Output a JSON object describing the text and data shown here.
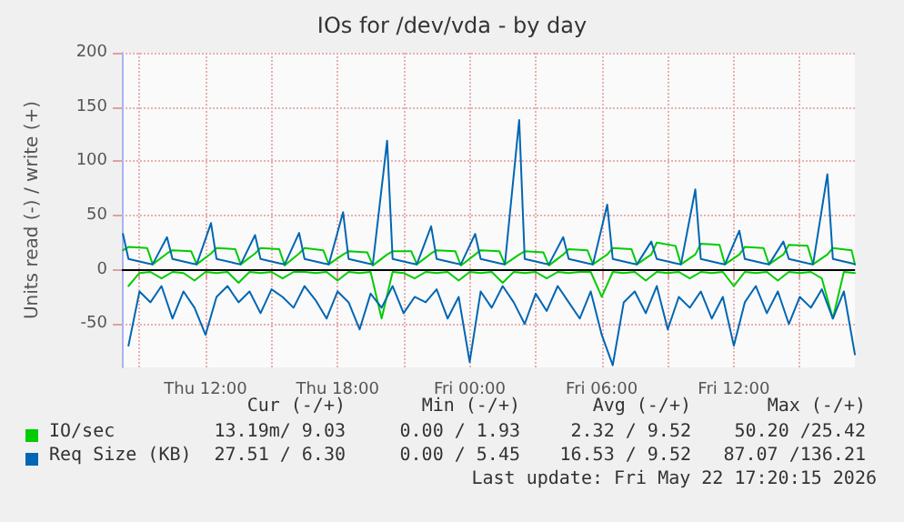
{
  "chart_data": {
    "type": "line",
    "title": "IOs for /dev/vda - by day",
    "ylabel": "Units read (-) / write (+)",
    "xlim": [
      "2026-05-21T08:12",
      "2026-05-22T17:30"
    ],
    "xticks": [
      {
        "value": "2026-05-21T09:00",
        "label": null
      },
      {
        "value": "2026-05-21T12:00",
        "label": "Thu 12:00"
      },
      {
        "value": "2026-05-21T15:00",
        "label": null
      },
      {
        "value": "2026-05-21T18:00",
        "label": "Thu 18:00"
      },
      {
        "value": "2026-05-21T21:00",
        "label": null
      },
      {
        "value": "2026-05-22T00:00",
        "label": "Fri 00:00"
      },
      {
        "value": "2026-05-22T03:00",
        "label": null
      },
      {
        "value": "2026-05-22T06:00",
        "label": "Fri 06:00"
      },
      {
        "value": "2026-05-22T09:00",
        "label": null
      },
      {
        "value": "2026-05-22T12:00",
        "label": "Fri 12:00"
      },
      {
        "value": "2026-05-22T15:00",
        "label": null
      }
    ],
    "ylim": [
      -90,
      200
    ],
    "yticks": [
      -50,
      0,
      50,
      100,
      150,
      200
    ],
    "grid": true,
    "legend": "bottom",
    "marker": "none",
    "ref_lines": [
      {
        "axis": "y",
        "value": 0,
        "color": "#000000"
      }
    ],
    "series": [
      {
        "name": "IO/sec",
        "color": "#00cc00",
        "x": [
          "2026-05-21T08:15",
          "2026-05-21T08:30",
          "2026-05-21T09:21",
          "2026-05-21T09:36",
          "2026-05-21T10:15",
          "2026-05-21T10:30",
          "2026-05-21T11:21",
          "2026-05-21T11:36",
          "2026-05-21T12:15",
          "2026-05-21T12:30",
          "2026-05-21T13:21",
          "2026-05-21T13:36",
          "2026-05-21T14:15",
          "2026-05-21T14:30",
          "2026-05-21T15:21",
          "2026-05-21T15:36",
          "2026-05-21T16:15",
          "2026-05-21T16:30",
          "2026-05-21T17:21",
          "2026-05-21T17:36",
          "2026-05-21T18:15",
          "2026-05-21T18:30",
          "2026-05-21T19:21",
          "2026-05-21T19:36",
          "2026-05-21T20:15",
          "2026-05-21T20:30",
          "2026-05-21T21:21",
          "2026-05-21T21:36",
          "2026-05-21T22:15",
          "2026-05-21T22:30",
          "2026-05-21T23:21",
          "2026-05-21T23:36",
          "2026-05-22T00:15",
          "2026-05-22T00:30",
          "2026-05-22T01:21",
          "2026-05-22T01:36",
          "2026-05-22T02:15",
          "2026-05-22T02:30",
          "2026-05-22T03:21",
          "2026-05-22T03:36",
          "2026-05-22T04:15",
          "2026-05-22T04:30",
          "2026-05-22T05:21",
          "2026-05-22T05:36",
          "2026-05-22T06:15",
          "2026-05-22T06:30",
          "2026-05-22T07:21",
          "2026-05-22T07:36",
          "2026-05-22T08:15",
          "2026-05-22T08:30",
          "2026-05-22T09:21",
          "2026-05-22T09:36",
          "2026-05-22T10:15",
          "2026-05-22T10:30",
          "2026-05-22T11:21",
          "2026-05-22T11:36",
          "2026-05-22T12:15",
          "2026-05-22T12:30",
          "2026-05-22T13:21",
          "2026-05-22T13:36",
          "2026-05-22T14:15",
          "2026-05-22T14:30",
          "2026-05-22T15:21",
          "2026-05-22T15:36",
          "2026-05-22T16:15",
          "2026-05-22T16:30",
          "2026-05-22T17:21",
          "2026-05-22T17:30"
        ],
        "values": [
          18,
          21,
          20,
          5,
          15,
          18,
          17,
          5,
          15,
          20,
          19,
          5,
          15,
          20,
          19,
          4,
          15,
          20,
          18,
          5,
          14,
          17,
          16,
          4,
          14,
          17,
          17,
          5,
          15,
          18,
          17,
          4,
          14,
          18,
          17,
          5,
          14,
          17,
          16,
          4,
          14,
          19,
          18,
          5,
          14,
          20,
          19,
          5,
          14,
          25,
          22,
          5,
          14,
          24,
          23,
          5,
          14,
          21,
          20,
          5,
          14,
          23,
          22,
          5,
          14,
          20,
          18,
          5
        ]
      },
      {
        "name": "Req Size (KB)",
        "color": "#0066b3",
        "x": [
          "2026-05-21T08:15",
          "2026-05-21T08:30",
          "2026-05-21T09:21",
          "2026-05-21T09:36",
          "2026-05-21T10:15",
          "2026-05-21T10:30",
          "2026-05-21T11:21",
          "2026-05-21T11:36",
          "2026-05-21T12:15",
          "2026-05-21T12:30",
          "2026-05-21T13:21",
          "2026-05-21T13:36",
          "2026-05-21T14:15",
          "2026-05-21T14:30",
          "2026-05-21T15:21",
          "2026-05-21T15:36",
          "2026-05-21T16:15",
          "2026-05-21T16:30",
          "2026-05-21T17:21",
          "2026-05-21T17:36",
          "2026-05-21T18:15",
          "2026-05-21T18:30",
          "2026-05-21T19:21",
          "2026-05-21T19:36",
          "2026-05-21T20:15",
          "2026-05-21T20:30",
          "2026-05-21T21:21",
          "2026-05-21T21:36",
          "2026-05-21T22:15",
          "2026-05-21T22:30",
          "2026-05-21T23:21",
          "2026-05-21T23:36",
          "2026-05-22T00:15",
          "2026-05-22T00:30",
          "2026-05-22T01:21",
          "2026-05-22T01:36",
          "2026-05-22T02:15",
          "2026-05-22T02:30",
          "2026-05-22T03:21",
          "2026-05-22T03:36",
          "2026-05-22T04:15",
          "2026-05-22T04:30",
          "2026-05-22T05:21",
          "2026-05-22T05:36",
          "2026-05-22T06:15",
          "2026-05-22T06:30",
          "2026-05-22T07:21",
          "2026-05-22T07:36",
          "2026-05-22T08:15",
          "2026-05-22T08:30",
          "2026-05-22T09:21",
          "2026-05-22T09:36",
          "2026-05-22T10:15",
          "2026-05-22T10:30",
          "2026-05-22T11:21",
          "2026-05-22T11:36",
          "2026-05-22T12:15",
          "2026-05-22T12:30",
          "2026-05-22T13:21",
          "2026-05-22T13:36",
          "2026-05-22T14:15",
          "2026-05-22T14:30",
          "2026-05-22T15:21",
          "2026-05-22T15:36",
          "2026-05-22T16:15",
          "2026-05-22T16:30",
          "2026-05-22T17:21",
          "2026-05-22T17:30"
        ],
        "values": [
          33,
          10,
          6,
          5,
          30,
          10,
          6,
          5,
          43,
          10,
          6,
          5,
          32,
          10,
          6,
          5,
          34,
          10,
          6,
          5,
          53,
          10,
          6,
          5,
          119,
          10,
          6,
          5,
          40,
          10,
          6,
          5,
          33,
          10,
          6,
          5,
          138,
          10,
          6,
          5,
          30,
          10,
          6,
          5,
          60,
          10,
          6,
          5,
          26,
          10,
          6,
          5,
          74,
          10,
          6,
          5,
          36,
          10,
          6,
          5,
          26,
          10,
          6,
          5,
          88,
          10,
          6,
          5
        ]
      },
      {
        "color": "#00cc00",
        "x": [
          "2026-05-21T08:30",
          "2026-05-21T09:00",
          "2026-05-21T09:30",
          "2026-05-21T10:00",
          "2026-05-21T10:30",
          "2026-05-21T11:00",
          "2026-05-21T11:30",
          "2026-05-21T12:00",
          "2026-05-21T12:30",
          "2026-05-21T13:00",
          "2026-05-21T13:30",
          "2026-05-21T14:00",
          "2026-05-21T14:30",
          "2026-05-21T15:00",
          "2026-05-21T15:30",
          "2026-05-21T16:00",
          "2026-05-21T16:30",
          "2026-05-21T17:00",
          "2026-05-21T17:30",
          "2026-05-21T18:00",
          "2026-05-21T18:30",
          "2026-05-21T19:00",
          "2026-05-21T19:30",
          "2026-05-21T20:00",
          "2026-05-21T20:30",
          "2026-05-21T21:00",
          "2026-05-21T21:30",
          "2026-05-21T22:00",
          "2026-05-21T22:30",
          "2026-05-21T23:00",
          "2026-05-21T23:30",
          "2026-05-22T00:00",
          "2026-05-22T00:30",
          "2026-05-22T01:00",
          "2026-05-22T01:30",
          "2026-05-22T02:00",
          "2026-05-22T02:30",
          "2026-05-22T03:00",
          "2026-05-22T03:30",
          "2026-05-22T04:00",
          "2026-05-22T04:30",
          "2026-05-22T05:00",
          "2026-05-22T05:30",
          "2026-05-22T06:00",
          "2026-05-22T06:30",
          "2026-05-22T07:00",
          "2026-05-22T07:30",
          "2026-05-22T08:00",
          "2026-05-22T08:30",
          "2026-05-22T09:00",
          "2026-05-22T09:30",
          "2026-05-22T10:00",
          "2026-05-22T10:30",
          "2026-05-22T11:00",
          "2026-05-22T11:30",
          "2026-05-22T12:00",
          "2026-05-22T12:30",
          "2026-05-22T13:00",
          "2026-05-22T13:30",
          "2026-05-22T14:00",
          "2026-05-22T14:30",
          "2026-05-22T15:00",
          "2026-05-22T15:30",
          "2026-05-22T16:00",
          "2026-05-22T16:30",
          "2026-05-22T17:00",
          "2026-05-22T17:30"
        ],
        "values": [
          -15,
          -3,
          -2,
          -8,
          -2,
          -3,
          -10,
          -2,
          -3,
          -2,
          -12,
          -2,
          -3,
          -2,
          -8,
          -2,
          -2,
          -3,
          -2,
          -10,
          -2,
          -3,
          -2,
          -45,
          -2,
          -3,
          -8,
          -2,
          -3,
          -2,
          -10,
          -2,
          -3,
          -2,
          -12,
          -2,
          -3,
          -2,
          -8,
          -2,
          -3,
          -2,
          -2,
          -25,
          -2,
          -3,
          -2,
          -10,
          -2,
          -3,
          -2,
          -8,
          -2,
          -3,
          -2,
          -15,
          -2,
          -3,
          -2,
          -10,
          -2,
          -3,
          -2,
          -8,
          -45,
          -2,
          -3
        ]
      },
      {
        "color": "#0066b3",
        "x": [
          "2026-05-21T08:30",
          "2026-05-21T09:00",
          "2026-05-21T09:30",
          "2026-05-21T10:00",
          "2026-05-21T10:30",
          "2026-05-21T11:00",
          "2026-05-21T11:30",
          "2026-05-21T12:00",
          "2026-05-21T12:30",
          "2026-05-21T13:00",
          "2026-05-21T13:30",
          "2026-05-21T14:00",
          "2026-05-21T14:30",
          "2026-05-21T15:00",
          "2026-05-21T15:30",
          "2026-05-21T16:00",
          "2026-05-21T16:30",
          "2026-05-21T17:00",
          "2026-05-21T17:30",
          "2026-05-21T18:00",
          "2026-05-21T18:30",
          "2026-05-21T19:00",
          "2026-05-21T19:30",
          "2026-05-21T20:00",
          "2026-05-21T20:30",
          "2026-05-21T21:00",
          "2026-05-21T21:30",
          "2026-05-21T22:00",
          "2026-05-21T22:30",
          "2026-05-21T23:00",
          "2026-05-21T23:30",
          "2026-05-22T00:00",
          "2026-05-22T00:30",
          "2026-05-22T01:00",
          "2026-05-22T01:30",
          "2026-05-22T02:00",
          "2026-05-22T02:30",
          "2026-05-22T03:00",
          "2026-05-22T03:30",
          "2026-05-22T04:00",
          "2026-05-22T04:30",
          "2026-05-22T05:00",
          "2026-05-22T05:30",
          "2026-05-22T06:00",
          "2026-05-22T06:30",
          "2026-05-22T07:00",
          "2026-05-22T07:30",
          "2026-05-22T08:00",
          "2026-05-22T08:30",
          "2026-05-22T09:00",
          "2026-05-22T09:30",
          "2026-05-22T10:00",
          "2026-05-22T10:30",
          "2026-05-22T11:00",
          "2026-05-22T11:30",
          "2026-05-22T12:00",
          "2026-05-22T12:30",
          "2026-05-22T13:00",
          "2026-05-22T13:30",
          "2026-05-22T14:00",
          "2026-05-22T14:30",
          "2026-05-22T15:00",
          "2026-05-22T15:30",
          "2026-05-22T16:00",
          "2026-05-22T16:30",
          "2026-05-22T17:00",
          "2026-05-22T17:30"
        ],
        "values": [
          -70,
          -20,
          -30,
          -15,
          -45,
          -20,
          -35,
          -60,
          -25,
          -15,
          -30,
          -20,
          -40,
          -18,
          -25,
          -35,
          -15,
          -28,
          -45,
          -20,
          -30,
          -55,
          -22,
          -35,
          -15,
          -40,
          -25,
          -30,
          -18,
          -45,
          -25,
          -85,
          -20,
          -35,
          -15,
          -30,
          -50,
          -22,
          -38,
          -15,
          -30,
          -45,
          -20,
          -60,
          -88,
          -30,
          -20,
          -40,
          -15,
          -55,
          -25,
          -35,
          -20,
          -45,
          -25,
          -70,
          -30,
          -15,
          -40,
          -20,
          -50,
          -25,
          -35,
          -18,
          -45,
          -20,
          -78
        ]
      }
    ],
    "annotations": [
      "Cur (-/+)",
      "Min (-/+)",
      "Avg (-/+)",
      "Max (-/+)",
      "13.19m/ 9.03",
      "0.00 / 1.93",
      "2.32 / 9.52",
      "50.20 /25.42",
      "27.51 / 6.30",
      "0.00 / 5.45",
      "16.53 / 9.52",
      "87.07 /136.21",
      "Last update: Fri May 22 17:20:15 2026"
    ]
  }
}
